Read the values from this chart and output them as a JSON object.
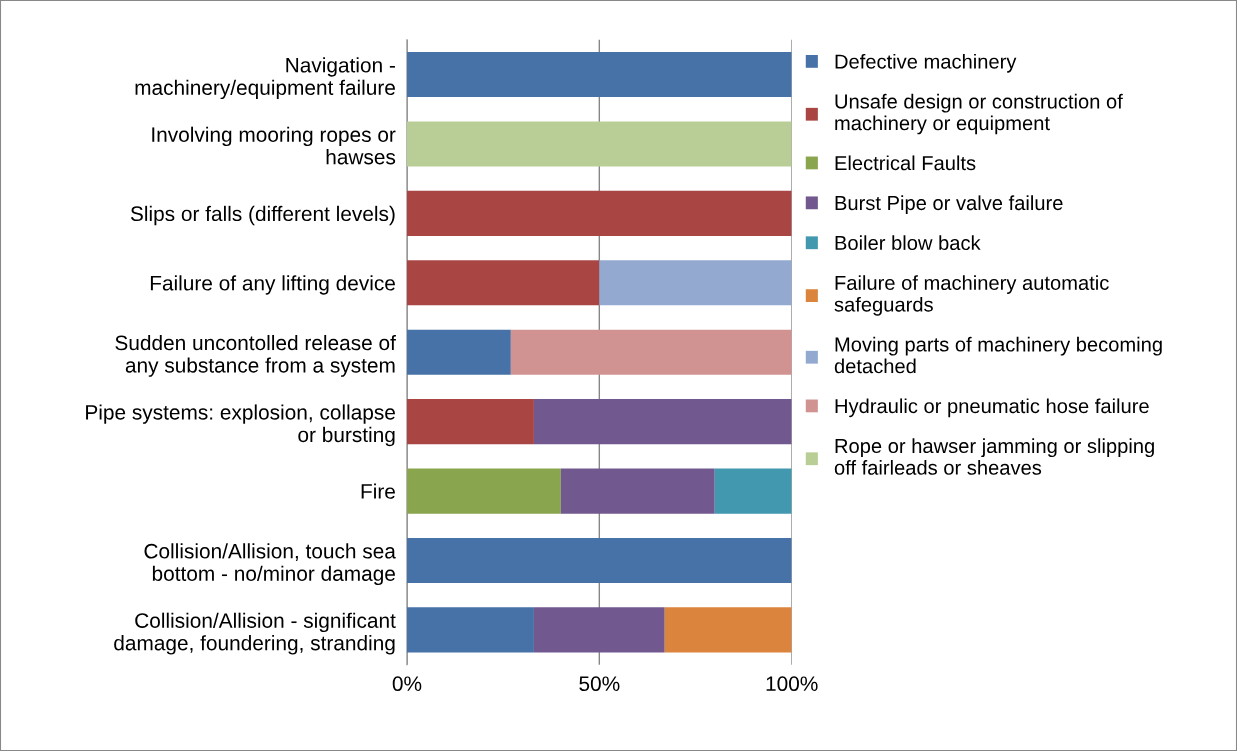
{
  "chart_data": {
    "type": "bar",
    "orientation": "horizontal",
    "stacked": true,
    "categories": [
      "Navigation -\nmachinery/equipment failure",
      "Involving mooring ropes or\nhawses",
      "Slips or falls (different levels)",
      "Failure of any lifting device",
      "Sudden uncontolled release of\nany substance from a system",
      "Pipe systems: explosion, collapse\nor bursting",
      "Fire",
      "Collision/Allision, touch sea\nbottom - no/minor damage",
      "Collision/Allision - significant\ndamage, foundering, stranding"
    ],
    "series": [
      {
        "name": "Defective machinery",
        "color": "#4672a8",
        "values": [
          100,
          0,
          0,
          0,
          27,
          0,
          0,
          100,
          33
        ]
      },
      {
        "name": "Unsafe design or construction of\nmachinery or equipment",
        "color": "#a94644",
        "values": [
          0,
          0,
          100,
          50,
          0,
          33,
          0,
          0,
          0
        ]
      },
      {
        "name": "Electrical Faults",
        "color": "#89a54e",
        "values": [
          0,
          0,
          0,
          0,
          0,
          0,
          40,
          0,
          0
        ]
      },
      {
        "name": "Burst Pipe or valve failure",
        "color": "#71588f",
        "values": [
          0,
          0,
          0,
          0,
          0,
          67,
          40,
          0,
          34
        ]
      },
      {
        "name": "Boiler blow back",
        "color": "#4198af",
        "values": [
          0,
          0,
          0,
          0,
          0,
          0,
          20,
          0,
          0
        ]
      },
      {
        "name": "Failure of machinery automatic\nsafeguards",
        "color": "#db843d",
        "values": [
          0,
          0,
          0,
          0,
          0,
          0,
          0,
          0,
          33
        ]
      },
      {
        "name": "Moving parts of machinery becoming\ndetached",
        "color": "#93a9cf",
        "values": [
          0,
          0,
          0,
          50,
          0,
          0,
          0,
          0,
          0
        ]
      },
      {
        "name": "Hydraulic or pneumatic hose failure",
        "color": "#d19392",
        "values": [
          0,
          0,
          0,
          0,
          73,
          0,
          0,
          0,
          0
        ]
      },
      {
        "name": "Rope or hawser jamming or slipping\noff fairleads or sheaves",
        "color": "#b9cd96",
        "values": [
          0,
          100,
          0,
          0,
          0,
          0,
          0,
          0,
          0
        ]
      }
    ],
    "xlim": [
      0,
      100
    ],
    "xticks": [
      {
        "value": 0,
        "label": "0%"
      },
      {
        "value": 50,
        "label": "50%"
      },
      {
        "value": 100,
        "label": "100%"
      }
    ],
    "grid": "x",
    "legend": "right"
  }
}
